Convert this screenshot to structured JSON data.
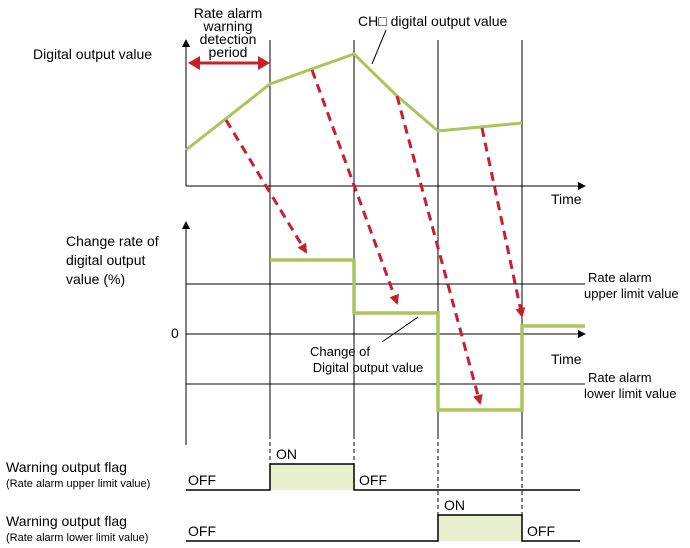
{
  "colors": {
    "signal": "#a8c65a",
    "arrow": "#c8202a",
    "flag_fill": "#e8efcf",
    "axis": "#000000"
  },
  "top_chart": {
    "ylabel": "Digital output value",
    "xlabel": "Time",
    "series_label": "CH□ digital output value",
    "period_label_line1": "Rate alarm",
    "period_label_line2": "warning",
    "period_label_line3": "detection",
    "period_label_line4": "period"
  },
  "middle_chart": {
    "ylabel_line1": "Change rate of",
    "ylabel_line2": "digital output",
    "ylabel_line3": "value (%)",
    "zero_label": "0",
    "xlabel": "Time",
    "upper_limit_line1": "Rate alarm",
    "upper_limit_line2": "upper limit value",
    "lower_limit_line1": "Rate alarm",
    "lower_limit_line2": "lower limit value",
    "change_label_line1": "Change of",
    "change_label_line2": "Digital output value"
  },
  "upper_flag": {
    "label_line1": "Warning output flag",
    "label_line2": "(Rate alarm upper limit value)",
    "off_left": "OFF",
    "on": "ON",
    "off_right": "OFF"
  },
  "lower_flag": {
    "label_line1": "Warning output flag",
    "label_line2": "(Rate alarm lower limit value)",
    "off_left": "OFF",
    "on": "ON",
    "off_right": "OFF"
  },
  "icons": {
    "arrow": "dashed-arrow-icon",
    "double_arrow": "double-headed-arrow-icon"
  }
}
